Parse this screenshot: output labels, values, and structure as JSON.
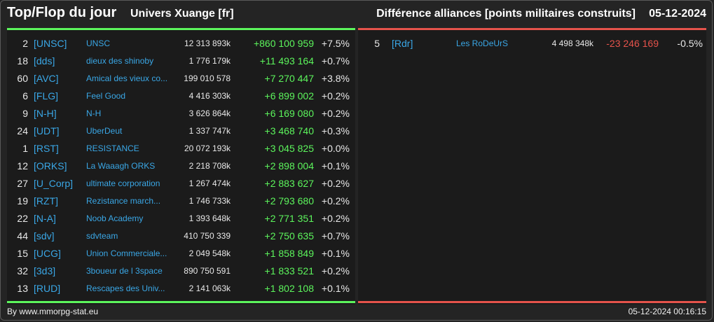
{
  "header": {
    "title": "Top/Flop du jour",
    "universe": "Univers Xuange [fr]",
    "subtitle": "Différence alliances [points militaires construits]",
    "date": "05-12-2024"
  },
  "top": [
    {
      "rank": "2",
      "tag": "[UNSC]",
      "name": "UNSC",
      "points": "12 313 893k",
      "diff": "+860 100 959",
      "pct": "+7.5%"
    },
    {
      "rank": "18",
      "tag": "[dds]",
      "name": "dieux des shinoby",
      "points": "1 776 179k",
      "diff": "+11 493 164",
      "pct": "+0.7%"
    },
    {
      "rank": "60",
      "tag": "[AVC]",
      "name": "Amical des vieux co...",
      "points": "199 010 578",
      "diff": "+7 270 447",
      "pct": "+3.8%"
    },
    {
      "rank": "6",
      "tag": "[FLG]",
      "name": "Feel Good",
      "points": "4 416 303k",
      "diff": "+6 899 002",
      "pct": "+0.2%"
    },
    {
      "rank": "9",
      "tag": "[N-H]",
      "name": "N-H",
      "points": "3 626 864k",
      "diff": "+6 169 080",
      "pct": "+0.2%"
    },
    {
      "rank": "24",
      "tag": "[UDT]",
      "name": "UberDeut",
      "points": "1 337 747k",
      "diff": "+3 468 740",
      "pct": "+0.3%"
    },
    {
      "rank": "1",
      "tag": "[RST]",
      "name": "RESISTANCE",
      "points": "20 072 193k",
      "diff": "+3 045 825",
      "pct": "+0.0%"
    },
    {
      "rank": "12",
      "tag": "[ORKS]",
      "name": "La Waaagh ORKS",
      "points": "2 218 708k",
      "diff": "+2 898 004",
      "pct": "+0.1%"
    },
    {
      "rank": "27",
      "tag": "[U_Corp]",
      "name": "ultimate corporation",
      "points": "1 267 474k",
      "diff": "+2 883 627",
      "pct": "+0.2%"
    },
    {
      "rank": "19",
      "tag": "[RZT]",
      "name": "Rezistance march...",
      "points": "1 746 733k",
      "diff": "+2 793 680",
      "pct": "+0.2%"
    },
    {
      "rank": "22",
      "tag": "[N-A]",
      "name": "Noob Academy",
      "points": "1 393 648k",
      "diff": "+2 771 351",
      "pct": "+0.2%"
    },
    {
      "rank": "44",
      "tag": "[sdv]",
      "name": "sdvteam",
      "points": "410 750 339",
      "diff": "+2 750 635",
      "pct": "+0.7%"
    },
    {
      "rank": "15",
      "tag": "[UCG]",
      "name": "Union Commerciale...",
      "points": "2 049 548k",
      "diff": "+1 858 849",
      "pct": "+0.1%"
    },
    {
      "rank": "32",
      "tag": "[3d3]",
      "name": "3boueur de l 3space",
      "points": "890 750 591",
      "diff": "+1 833 521",
      "pct": "+0.2%"
    },
    {
      "rank": "13",
      "tag": "[RUD]",
      "name": "Rescapes des Univ...",
      "points": "2 141 063k",
      "diff": "+1 802 108",
      "pct": "+0.1%"
    }
  ],
  "flop": [
    {
      "rank": "5",
      "tag": "[Rdr]",
      "name": "Les RoDeUrS",
      "points": "4 498 348k",
      "diff": "-23 246 169",
      "pct": "-0.5%"
    }
  ],
  "footer": {
    "source": "By www.mmorpg-stat.eu",
    "timestamp": "05-12-2024 00:16:15"
  },
  "colors": {
    "positive": "#5cf55c",
    "negative": "#e5534b",
    "link": "#3aa7e6",
    "background": "#242424",
    "panel": "#1b1b1b"
  }
}
